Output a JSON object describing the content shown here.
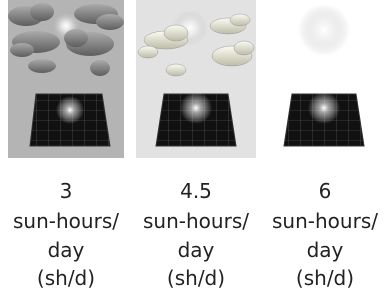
{
  "panels": [
    {
      "value": 3,
      "unit": "sun-hours/",
      "per": "day",
      "abbr": "(sh/d)"
    },
    {
      "value": 4.5,
      "unit": "sun-hours/",
      "per": "day",
      "abbr": "(sh/d)"
    },
    {
      "value": 6,
      "unit": "sun-hours/",
      "per": "day",
      "abbr": "(sh/d)"
    }
  ]
}
